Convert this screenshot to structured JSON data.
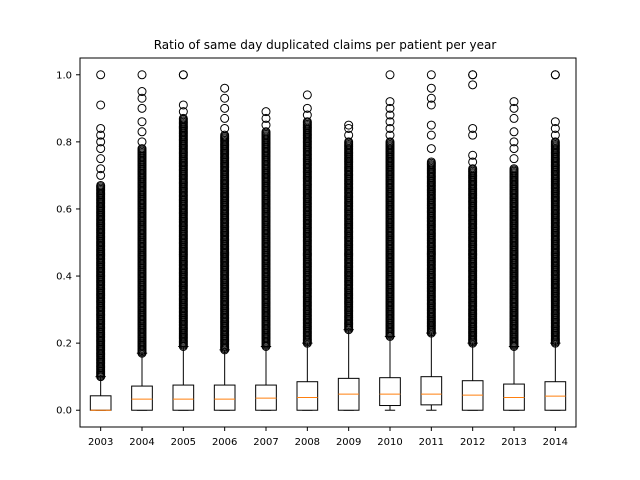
{
  "chart_data": {
    "type": "box",
    "title": "Ratio of same day duplicated claims per patient per year",
    "xlabel": "",
    "ylabel": "",
    "ylim": [
      -0.05,
      1.05
    ],
    "yticks": [
      "0.0",
      "0.2",
      "0.4",
      "0.6",
      "0.8",
      "1.0"
    ],
    "median_color": "#ff7f0e",
    "box_color": "#000000",
    "categories": [
      "2003",
      "2004",
      "2005",
      "2006",
      "2007",
      "2008",
      "2009",
      "2010",
      "2011",
      "2012",
      "2013",
      "2014"
    ],
    "boxes": [
      {
        "q1": 0.0,
        "median": 0.0,
        "q3": 0.043,
        "whisker_low": 0.0,
        "whisker_high": 0.1,
        "outlier_min": 0.1,
        "outlier_dense_top": 0.67,
        "outliers": [
          0.7,
          0.72,
          0.75,
          0.78,
          0.8,
          0.82,
          0.84,
          0.91,
          1.0
        ]
      },
      {
        "q1": 0.0,
        "median": 0.033,
        "q3": 0.072,
        "whisker_low": 0.0,
        "whisker_high": 0.17,
        "outlier_min": 0.17,
        "outlier_dense_top": 0.78,
        "outliers": [
          0.8,
          0.83,
          0.86,
          0.9,
          0.93,
          0.95,
          1.0
        ]
      },
      {
        "q1": 0.0,
        "median": 0.033,
        "q3": 0.075,
        "whisker_low": 0.0,
        "whisker_high": 0.19,
        "outlier_min": 0.19,
        "outlier_dense_top": 0.87,
        "outliers": [
          0.89,
          0.91,
          1.0,
          1.0
        ]
      },
      {
        "q1": 0.0,
        "median": 0.033,
        "q3": 0.075,
        "whisker_low": 0.0,
        "whisker_high": 0.18,
        "outlier_min": 0.18,
        "outlier_dense_top": 0.82,
        "outliers": [
          0.84,
          0.87,
          0.9,
          0.93,
          0.96
        ]
      },
      {
        "q1": 0.0,
        "median": 0.036,
        "q3": 0.075,
        "whisker_low": 0.0,
        "whisker_high": 0.19,
        "outlier_min": 0.19,
        "outlier_dense_top": 0.83,
        "outliers": [
          0.85,
          0.87,
          0.89
        ]
      },
      {
        "q1": 0.0,
        "median": 0.038,
        "q3": 0.085,
        "whisker_low": 0.0,
        "whisker_high": 0.2,
        "outlier_min": 0.2,
        "outlier_dense_top": 0.86,
        "outliers": [
          0.88,
          0.9,
          0.94
        ]
      },
      {
        "q1": 0.0,
        "median": 0.048,
        "q3": 0.095,
        "whisker_low": 0.0,
        "whisker_high": 0.24,
        "outlier_min": 0.24,
        "outlier_dense_top": 0.8,
        "outliers": [
          0.82,
          0.84,
          0.85
        ]
      },
      {
        "q1": 0.014,
        "median": 0.048,
        "q3": 0.097,
        "whisker_low": 0.0,
        "whisker_high": 0.22,
        "outlier_min": 0.22,
        "outlier_dense_top": 0.8,
        "outliers": [
          0.82,
          0.84,
          0.86,
          0.88,
          0.9,
          0.92,
          1.0
        ]
      },
      {
        "q1": 0.016,
        "median": 0.048,
        "q3": 0.1,
        "whisker_low": 0.0,
        "whisker_high": 0.23,
        "outlier_min": 0.23,
        "outlier_dense_top": 0.74,
        "outliers": [
          0.78,
          0.82,
          0.85,
          0.91,
          0.93,
          0.96,
          1.0
        ]
      },
      {
        "q1": 0.0,
        "median": 0.045,
        "q3": 0.088,
        "whisker_low": 0.0,
        "whisker_high": 0.2,
        "outlier_min": 0.2,
        "outlier_dense_top": 0.72,
        "outliers": [
          0.74,
          0.76,
          0.82,
          0.84,
          0.97,
          1.0,
          1.0
        ]
      },
      {
        "q1": 0.0,
        "median": 0.038,
        "q3": 0.078,
        "whisker_low": 0.0,
        "whisker_high": 0.19,
        "outlier_min": 0.19,
        "outlier_dense_top": 0.72,
        "outliers": [
          0.75,
          0.78,
          0.8,
          0.83,
          0.87,
          0.9,
          0.92
        ]
      },
      {
        "q1": 0.0,
        "median": 0.042,
        "q3": 0.085,
        "whisker_low": 0.0,
        "whisker_high": 0.2,
        "outlier_min": 0.2,
        "outlier_dense_top": 0.8,
        "outliers": [
          0.82,
          0.84,
          0.86,
          1.0,
          1.0
        ]
      }
    ]
  }
}
